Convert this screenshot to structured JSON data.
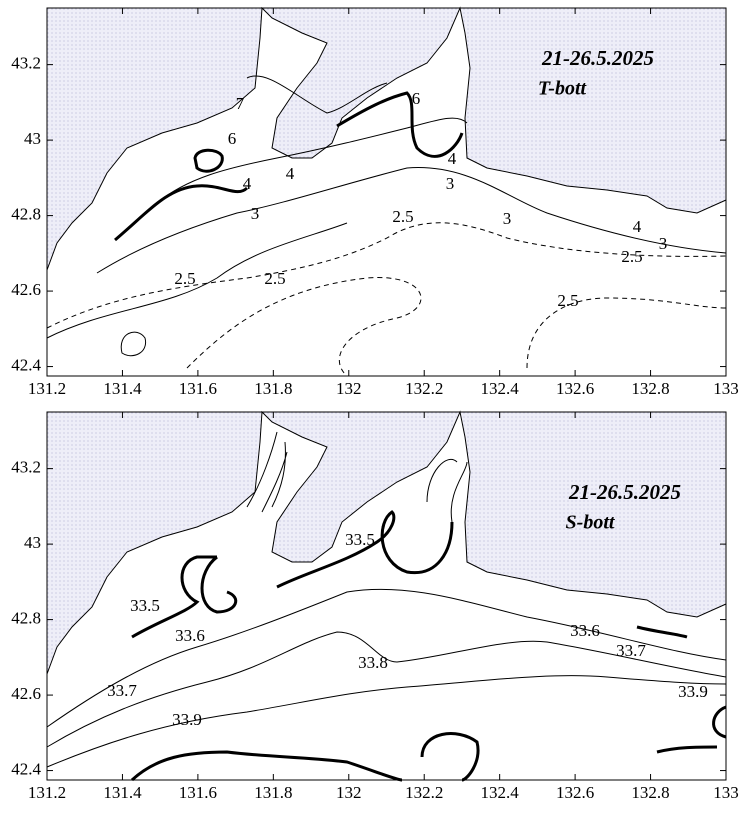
{
  "panels": [
    {
      "title": "21-26.5.2025",
      "subtitle": "T-bott",
      "xlim": [
        131.2,
        133
      ],
      "ylim": [
        42.375,
        43.35
      ],
      "xticks": [
        131.2,
        131.4,
        131.6,
        131.8,
        132,
        132.2,
        132.4,
        132.6,
        132.8,
        133
      ],
      "yticks": [
        42.4,
        42.6,
        42.8,
        43,
        43.2
      ],
      "contour_labels": [
        7,
        6,
        4,
        4,
        3,
        2.5,
        2.5,
        2.5,
        3,
        4,
        6,
        3,
        4,
        3,
        2.5,
        2.5
      ]
    },
    {
      "title": "21-26.5.2025",
      "subtitle": "S-bott",
      "xlim": [
        131.2,
        133
      ],
      "ylim": [
        42.375,
        43.35
      ],
      "xticks": [
        131.2,
        131.4,
        131.6,
        131.8,
        132,
        132.2,
        132.4,
        132.6,
        132.8,
        133
      ],
      "yticks": [
        42.4,
        42.6,
        42.8,
        43,
        43.2
      ],
      "contour_labels": [
        33.5,
        33.6,
        33.7,
        33.9,
        33.8,
        33.5,
        33.6,
        33.7,
        33.9
      ]
    }
  ]
}
